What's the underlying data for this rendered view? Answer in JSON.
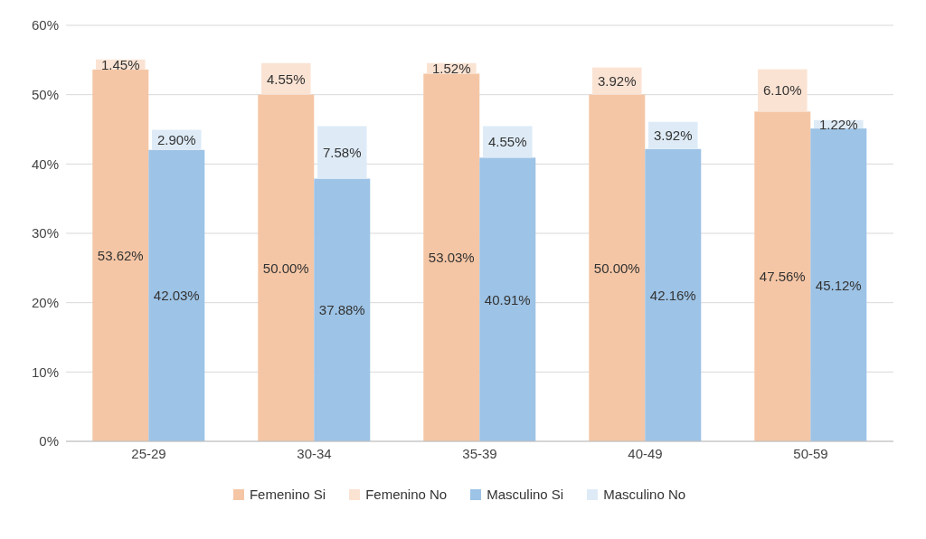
{
  "chart_data": {
    "type": "bar",
    "categories": [
      "25-29",
      "30-34",
      "35-39",
      "40-49",
      "50-59"
    ],
    "series": [
      {
        "name": "Femenino  Si",
        "color": "#f5c6a5",
        "values": [
          53.62,
          50.0,
          53.03,
          50.0,
          47.56
        ],
        "value_labels": [
          "53.62%",
          "50.00%",
          "53.03%",
          "50.00%",
          "47.56%"
        ]
      },
      {
        "name": "Femenino  No",
        "color": "#fbe3d3",
        "base": [
          53.62,
          50.0,
          53.03,
          50.0,
          47.56
        ],
        "values": [
          1.45,
          4.55,
          1.52,
          3.92,
          6.1
        ],
        "value_labels": [
          "1.45%",
          "4.55%",
          "1.52%",
          "3.92%",
          "6.10%"
        ]
      },
      {
        "name": "Masculino Si",
        "color": "#9dc3e6",
        "values": [
          42.03,
          37.88,
          40.91,
          42.16,
          45.12
        ],
        "value_labels": [
          "42.03%",
          "37.88%",
          "40.91%",
          "42.16%",
          "45.12%"
        ]
      },
      {
        "name": "Masculino No",
        "color": "#deebf7",
        "base": [
          42.03,
          37.88,
          40.91,
          42.16,
          45.12
        ],
        "values": [
          2.9,
          7.58,
          4.55,
          3.92,
          1.22
        ],
        "value_labels": [
          "2.90%",
          "7.58%",
          "4.55%",
          "3.92%",
          "1.22%"
        ]
      }
    ],
    "ylim": [
      0,
      60
    ],
    "yticks": [
      {
        "value": 0,
        "label": "0%"
      },
      {
        "value": 10,
        "label": "10%"
      },
      {
        "value": 20,
        "label": "20%"
      },
      {
        "value": 30,
        "label": "30%"
      },
      {
        "value": 40,
        "label": "40%"
      },
      {
        "value": 50,
        "label": "50%"
      },
      {
        "value": 60,
        "label": "60%"
      }
    ],
    "grid": "y",
    "legend": "bottom"
  }
}
